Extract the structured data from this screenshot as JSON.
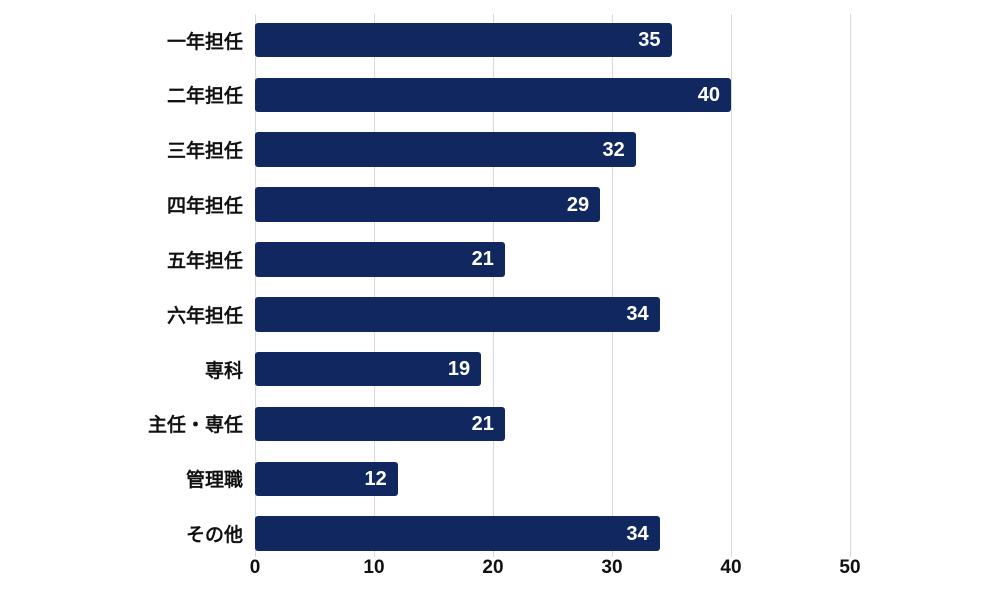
{
  "chart_data": {
    "type": "bar",
    "orientation": "horizontal",
    "title": "",
    "xlabel": "",
    "ylabel": "",
    "categories": [
      "一年担任",
      "二年担任",
      "三年担任",
      "四年担任",
      "五年担任",
      "六年担任",
      "専科",
      "主任・専任",
      "管理職",
      "その他"
    ],
    "values": [
      35,
      40,
      32,
      29,
      21,
      34,
      19,
      21,
      12,
      34
    ],
    "xlim": [
      0,
      50
    ],
    "x_ticks": [
      0,
      10,
      20,
      30,
      40,
      50
    ],
    "grid": true,
    "legend": "none",
    "value_labels": "inside-end",
    "colors": {
      "bar": "#112760",
      "gridline": "#d9d9d9",
      "value_label": "#ffffff",
      "category_label": "#111111",
      "tick_label": "#111111",
      "background": "#ffffff"
    }
  }
}
